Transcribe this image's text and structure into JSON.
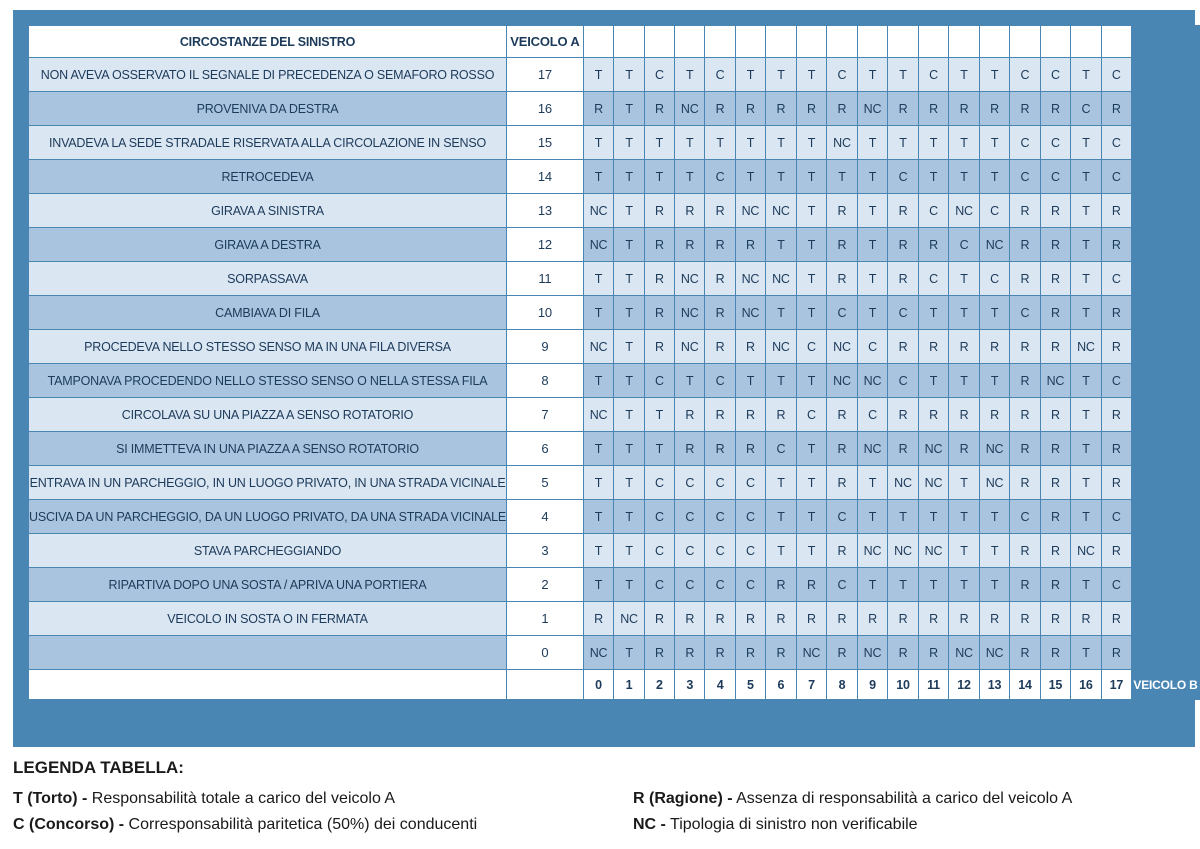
{
  "header": {
    "circostanze": "CIRCOSTANZE DEL SINISTRO",
    "veicolo_a": "VEICOLO A"
  },
  "rows": [
    {
      "label": "NON AVEVA OSSERVATO  IL SEGNALE DI PRECEDENZA O SEMAFORO ROSSO",
      "num": "17",
      "cells": [
        "T",
        "T",
        "C",
        "T",
        "C",
        "T",
        "T",
        "T",
        "C",
        "T",
        "T",
        "C",
        "T",
        "T",
        "C",
        "C",
        "T",
        "C"
      ]
    },
    {
      "label": "PROVENIVA DA DESTRA",
      "num": "16",
      "cells": [
        "R",
        "T",
        "R",
        "NC",
        "R",
        "R",
        "R",
        "R",
        "R",
        "NC",
        "R",
        "R",
        "R",
        "R",
        "R",
        "R",
        "C",
        "R"
      ]
    },
    {
      "label": "INVADEVA LA SEDE STRADALE RISERVATA ALLA CIRCOLAZIONE IN SENSO",
      "num": "15",
      "cells": [
        "T",
        "T",
        "T",
        "T",
        "T",
        "T",
        "T",
        "T",
        "NC",
        "T",
        "T",
        "T",
        "T",
        "T",
        "C",
        "C",
        "T",
        "C"
      ]
    },
    {
      "label": "RETROCEDEVA",
      "num": "14",
      "cells": [
        "T",
        "T",
        "T",
        "T",
        "C",
        "T",
        "T",
        "T",
        "T",
        "T",
        "C",
        "T",
        "T",
        "T",
        "C",
        "C",
        "T",
        "C"
      ]
    },
    {
      "label": "GIRAVA A SINISTRA",
      "num": "13",
      "cells": [
        "NC",
        "T",
        "R",
        "R",
        "R",
        "NC",
        "NC",
        "T",
        "R",
        "T",
        "R",
        "C",
        "NC",
        "C",
        "R",
        "R",
        "T",
        "R"
      ]
    },
    {
      "label": "GIRAVA A DESTRA",
      "num": "12",
      "cells": [
        "NC",
        "T",
        "R",
        "R",
        "R",
        "R",
        "T",
        "T",
        "R",
        "T",
        "R",
        "R",
        "C",
        "NC",
        "R",
        "R",
        "T",
        "R"
      ]
    },
    {
      "label": "SORPASSAVA",
      "num": "11",
      "cells": [
        "T",
        "T",
        "R",
        "NC",
        "R",
        "NC",
        "NC",
        "T",
        "R",
        "T",
        "R",
        "C",
        "T",
        "C",
        "R",
        "R",
        "T",
        "C"
      ]
    },
    {
      "label": "CAMBIAVA DI FILA",
      "num": "10",
      "cells": [
        "T",
        "T",
        "R",
        "NC",
        "R",
        "NC",
        "T",
        "T",
        "C",
        "T",
        "C",
        "T",
        "T",
        "T",
        "C",
        "R",
        "T",
        "R"
      ]
    },
    {
      "label": "PROCEDEVA NELLO STESSO SENSO MA IN UNA FILA DIVERSA",
      "num": "9",
      "cells": [
        "NC",
        "T",
        "R",
        "NC",
        "R",
        "R",
        "NC",
        "C",
        "NC",
        "C",
        "R",
        "R",
        "R",
        "R",
        "R",
        "R",
        "NC",
        "R"
      ]
    },
    {
      "label": "TAMPONAVA PROCEDENDO NELLO STESSO SENSO O NELLA STESSA FILA",
      "num": "8",
      "cells": [
        "T",
        "T",
        "C",
        "T",
        "C",
        "T",
        "T",
        "T",
        "NC",
        "NC",
        "C",
        "T",
        "T",
        "T",
        "R",
        "NC",
        "T",
        "C"
      ]
    },
    {
      "label": "CIRCOLAVA SU UNA PIAZZA A SENSO ROTATORIO",
      "num": "7",
      "cells": [
        "NC",
        "T",
        "T",
        "R",
        "R",
        "R",
        "R",
        "C",
        "R",
        "C",
        "R",
        "R",
        "R",
        "R",
        "R",
        "R",
        "T",
        "R"
      ]
    },
    {
      "label": "SI IMMETTEVA IN UNA PIAZZA A SENSO ROTATORIO",
      "num": "6",
      "cells": [
        "T",
        "T",
        "T",
        "R",
        "R",
        "R",
        "C",
        "T",
        "R",
        "NC",
        "R",
        "NC",
        "R",
        "NC",
        "R",
        "R",
        "T",
        "R"
      ]
    },
    {
      "label": "ENTRAVA IN UN PARCHEGGIO, IN UN LUOGO PRIVATO, IN UNA STRADA VICINALE",
      "num": "5",
      "cells": [
        "T",
        "T",
        "C",
        "C",
        "C",
        "C",
        "T",
        "T",
        "R",
        "T",
        "NC",
        "NC",
        "T",
        "NC",
        "R",
        "R",
        "T",
        "R"
      ]
    },
    {
      "label": "USCIVA DA UN PARCHEGGIO, DA UN LUOGO PRIVATO, DA UNA STRADA VICINALE",
      "num": "4",
      "cells": [
        "T",
        "T",
        "C",
        "C",
        "C",
        "C",
        "T",
        "T",
        "C",
        "T",
        "T",
        "T",
        "T",
        "T",
        "C",
        "R",
        "T",
        "C"
      ]
    },
    {
      "label": "STAVA PARCHEGGIANDO",
      "num": "3",
      "cells": [
        "T",
        "T",
        "C",
        "C",
        "C",
        "C",
        "T",
        "T",
        "R",
        "NC",
        "NC",
        "NC",
        "T",
        "T",
        "R",
        "R",
        "NC",
        "R"
      ]
    },
    {
      "label": "RIPARTIVA DOPO UNA SOSTA / APRIVA UNA PORTIERA",
      "num": "2",
      "cells": [
        "T",
        "T",
        "C",
        "C",
        "C",
        "C",
        "R",
        "R",
        "C",
        "T",
        "T",
        "T",
        "T",
        "T",
        "R",
        "R",
        "T",
        "C"
      ]
    },
    {
      "label": "VEICOLO IN SOSTA O IN FERMATA",
      "num": "1",
      "cells": [
        "R",
        "NC",
        "R",
        "R",
        "R",
        "R",
        "R",
        "R",
        "R",
        "R",
        "R",
        "R",
        "R",
        "R",
        "R",
        "R",
        "R",
        "R"
      ]
    },
    {
      "label": "",
      "num": "0",
      "cells": [
        "NC",
        "T",
        "R",
        "R",
        "R",
        "R",
        "R",
        "NC",
        "R",
        "NC",
        "R",
        "R",
        "NC",
        "NC",
        "R",
        "R",
        "T",
        "R"
      ]
    }
  ],
  "footer": {
    "columns": [
      "0",
      "1",
      "2",
      "3",
      "4",
      "5",
      "6",
      "7",
      "8",
      "9",
      "10",
      "11",
      "12",
      "13",
      "14",
      "15",
      "16",
      "17"
    ],
    "veicolo_b": "VEICOLO B"
  },
  "legend": {
    "title": "LEGENDA TABELLA:",
    "items": [
      {
        "code": "T (Torto) -",
        "desc": " Responsabilità totale a carico del veicolo A"
      },
      {
        "code": "R (Ragione) -",
        "desc": " Assenza di responsabilità a carico del veicolo A"
      },
      {
        "code": "C (Concorso) -",
        "desc": " Corresponsabilità paritetica (50%) dei conducenti"
      },
      {
        "code": "NC -",
        "desc": " Tipologia di sinistro non verificabile"
      }
    ]
  },
  "colors": {
    "panel": "#4a86b4",
    "row_light": "#dae6f2",
    "row_dark": "#a9c4de",
    "text": "#1c3a5a"
  }
}
